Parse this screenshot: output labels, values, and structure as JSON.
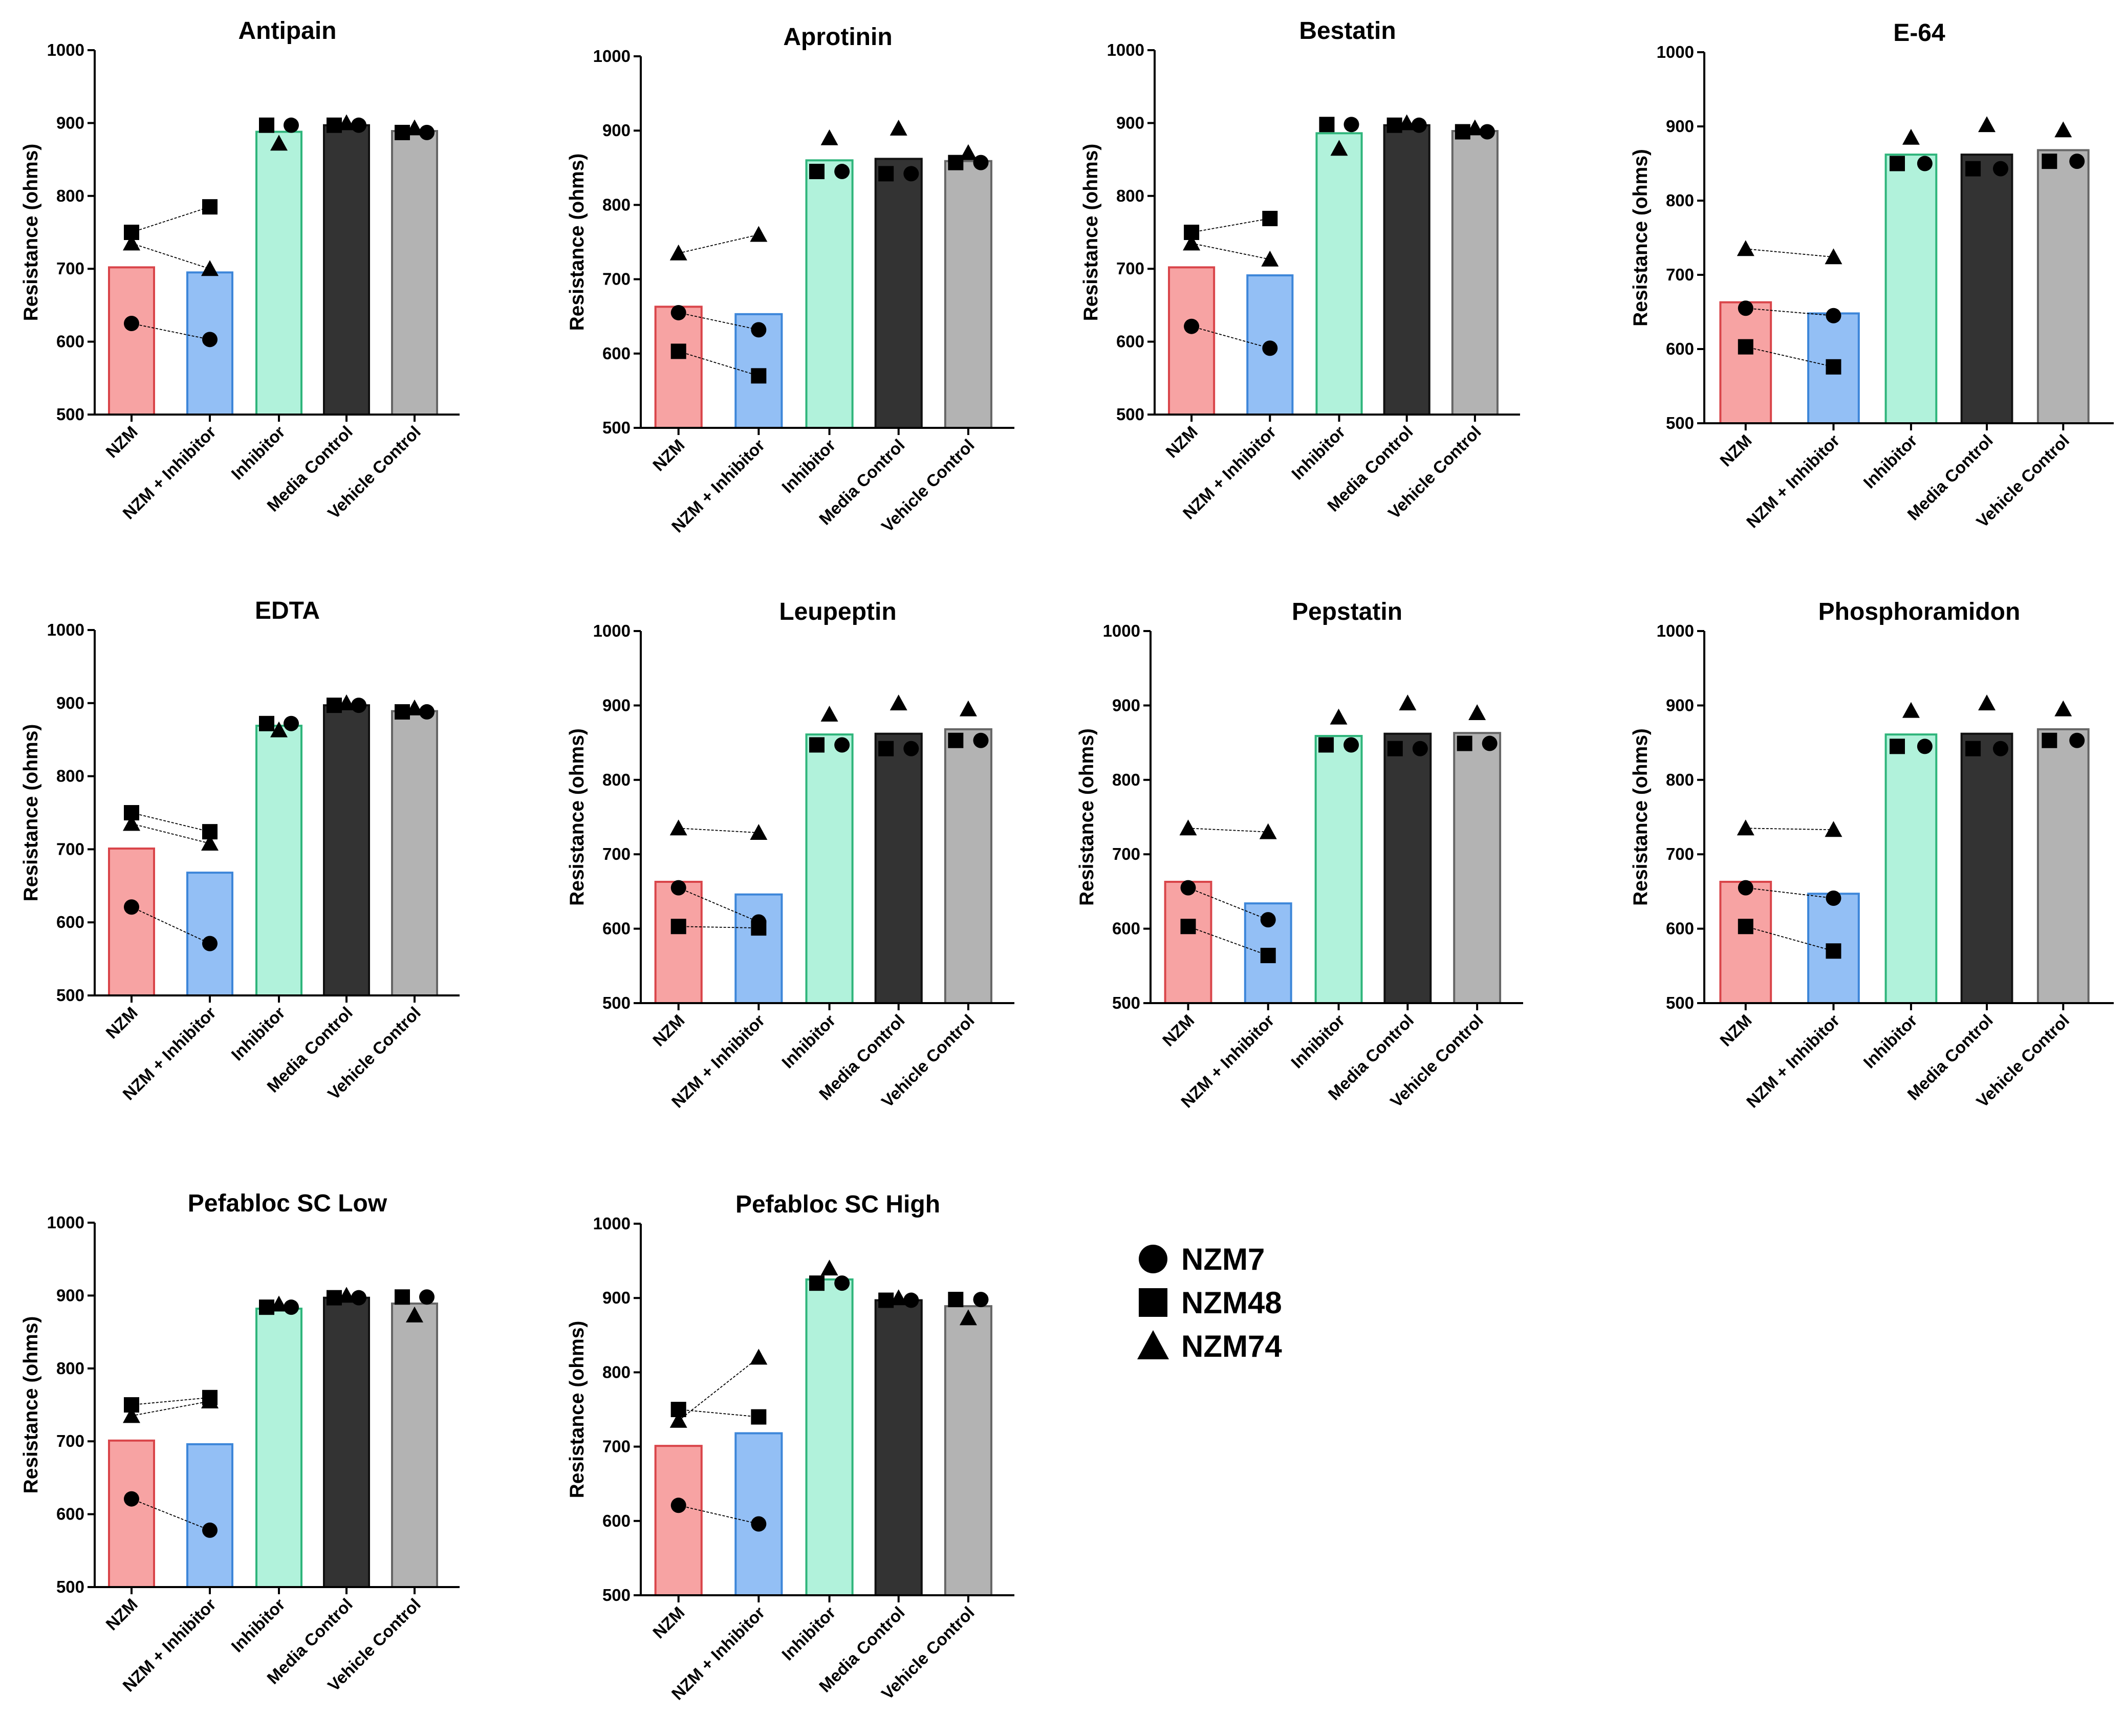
{
  "chart_data": {
    "type": "bar",
    "ylabel": "Resistance (ohms)",
    "ylim": [
      500,
      1000
    ],
    "yticks": [
      500,
      600,
      700,
      800,
      900,
      1000
    ],
    "categories": [
      "NZM",
      "NZM + Inhibitor",
      "Inhibitor",
      "Media Control",
      "Vehicle Control"
    ],
    "bar_colors": [
      "#f7a3a3",
      "#93bff5",
      "#b1f2db",
      "#333333",
      "#b3b3b3"
    ],
    "bar_edge_colors": [
      "#d9454a",
      "#3d86d9",
      "#2fb57b",
      "#111111",
      "#666666"
    ],
    "legend": [
      {
        "name": "NZM7",
        "marker": "circle"
      },
      {
        "name": "NZM48",
        "marker": "square"
      },
      {
        "name": "NZM74",
        "marker": "triangle"
      }
    ],
    "panels": [
      {
        "title": "Antipain",
        "means": [
          702,
          695,
          888,
          897,
          889
        ],
        "points": {
          "NZM7": [
            625,
            603,
            897,
            897,
            887
          ],
          "NZM48": [
            750,
            785,
            897,
            897,
            887
          ],
          "NZM74": [
            735,
            700,
            872,
            900,
            893
          ]
        }
      },
      {
        "title": "Aprotinin",
        "means": [
          663,
          653,
          860,
          862,
          859
        ],
        "points": {
          "NZM7": [
            655,
            632,
            845,
            842,
            857
          ],
          "NZM48": [
            603,
            570,
            845,
            842,
            857
          ],
          "NZM74": [
            735,
            760,
            890,
            903,
            870
          ]
        }
      },
      {
        "title": "Bestatin",
        "means": [
          702,
          691,
          886,
          897,
          889
        ],
        "points": {
          "NZM7": [
            621,
            591,
            898,
            897,
            888
          ],
          "NZM48": [
            750,
            769,
            898,
            897,
            888
          ],
          "NZM74": [
            735,
            713,
            865,
            900,
            893
          ]
        }
      },
      {
        "title": "E-64",
        "means": [
          663,
          648,
          862,
          862,
          868
        ],
        "points": {
          "NZM7": [
            655,
            645,
            850,
            843,
            853
          ],
          "NZM48": [
            603,
            576,
            850,
            843,
            853
          ],
          "NZM74": [
            735,
            724,
            885,
            902,
            895
          ]
        }
      },
      {
        "title": "EDTA",
        "means": [
          701,
          668,
          869,
          897,
          889
        ],
        "points": {
          "NZM7": [
            621,
            571,
            872,
            897,
            888
          ],
          "NZM48": [
            750,
            724,
            872,
            897,
            888
          ],
          "NZM74": [
            735,
            708,
            863,
            900,
            893
          ]
        }
      },
      {
        "title": "Leupeptin",
        "means": [
          663,
          646,
          861,
          862,
          868
        ],
        "points": {
          "NZM7": [
            655,
            609,
            847,
            842,
            853
          ],
          "NZM48": [
            603,
            601,
            847,
            842,
            853
          ],
          "NZM74": [
            735,
            729,
            888,
            903,
            895
          ]
        }
      },
      {
        "title": "Pepstatin",
        "means": [
          663,
          634,
          859,
          862,
          863
        ],
        "points": {
          "NZM7": [
            655,
            612,
            847,
            842,
            849
          ],
          "NZM48": [
            603,
            564,
            847,
            842,
            849
          ],
          "NZM74": [
            735,
            730,
            884,
            903,
            890
          ]
        }
      },
      {
        "title": "Phosphoramidon",
        "means": [
          663,
          647,
          861,
          862,
          868
        ],
        "points": {
          "NZM7": [
            655,
            641,
            845,
            842,
            853
          ],
          "NZM48": [
            603,
            570,
            845,
            842,
            853
          ],
          "NZM74": [
            735,
            733,
            893,
            903,
            895
          ]
        }
      },
      {
        "title": "Pefabloc SC Low",
        "means": [
          701,
          696,
          882,
          897,
          889
        ],
        "points": {
          "NZM7": [
            621,
            578,
            884,
            897,
            898
          ],
          "NZM48": [
            750,
            760,
            884,
            897,
            898
          ],
          "NZM74": [
            735,
            755,
            888,
            900,
            873
          ]
        }
      },
      {
        "title": "Pefabloc SC High",
        "means": [
          701,
          718,
          925,
          897,
          889
        ],
        "points": {
          "NZM7": [
            621,
            596,
            920,
            897,
            898
          ],
          "NZM48": [
            750,
            740,
            920,
            897,
            898
          ],
          "NZM74": [
            735,
            820,
            940,
            900,
            873
          ]
        }
      }
    ]
  }
}
